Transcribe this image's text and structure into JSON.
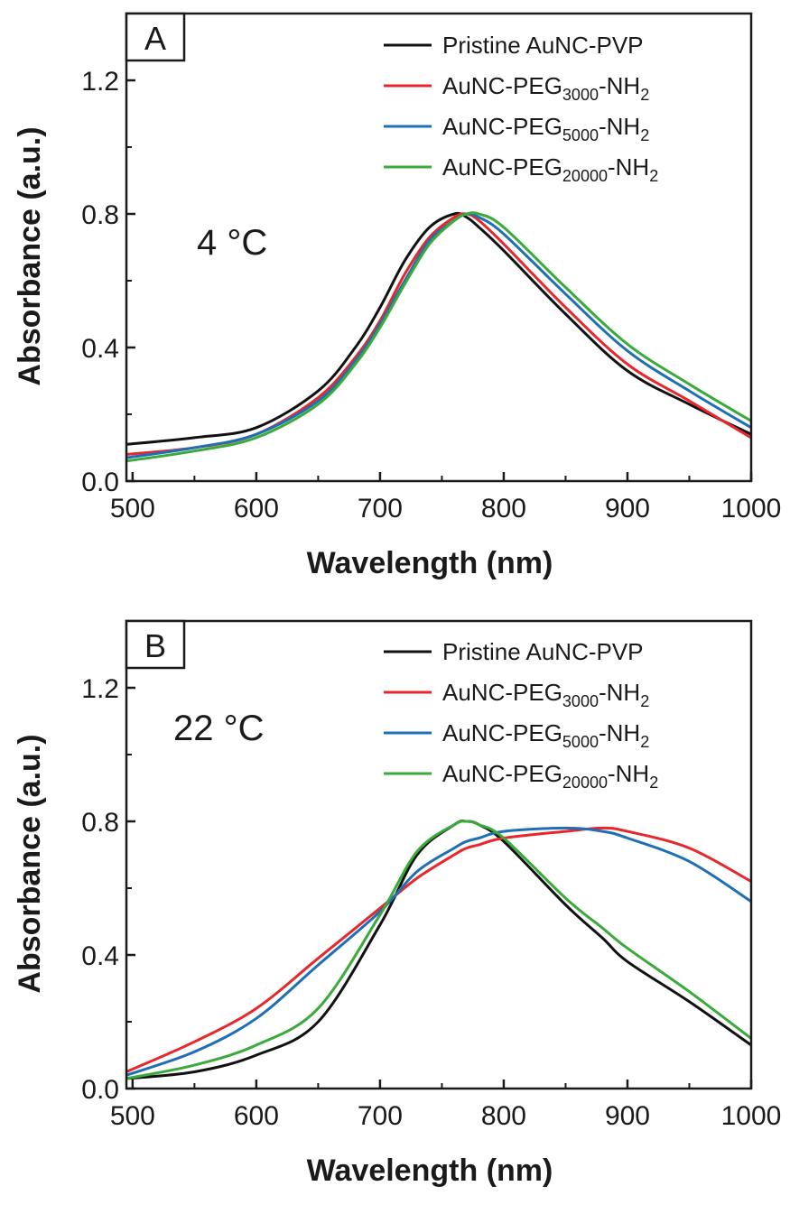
{
  "chart_data": [
    {
      "type": "line",
      "panel_label": "A",
      "annotation": "4 °C",
      "xlabel": "Wavelength (nm)",
      "ylabel": "Absorbance (a.u.)",
      "xlim": [
        495,
        1000
      ],
      "ylim": [
        0,
        1.4
      ],
      "xticks": [
        500,
        600,
        700,
        800,
        900,
        1000
      ],
      "yticks": [
        0.0,
        0.4,
        0.8,
        1.2
      ],
      "xtick_labels": [
        "500",
        "600",
        "700",
        "800",
        "900",
        "1000"
      ],
      "ytick_labels": [
        "0.0",
        "0.4",
        "0.8",
        "1.2"
      ],
      "legend_position": "top-right",
      "grid": false,
      "x": [
        495,
        550,
        600,
        650,
        680,
        700,
        720,
        740,
        760,
        770,
        780,
        800,
        850,
        900,
        950,
        1000
      ],
      "series": [
        {
          "name": "Pristine AuNC-PVP",
          "name_main": "Pristine AuNC-PVP",
          "name_sub": "",
          "name_tail": "",
          "color": "#111111",
          "values": [
            0.11,
            0.13,
            0.16,
            0.27,
            0.4,
            0.52,
            0.66,
            0.76,
            0.8,
            0.79,
            0.76,
            0.69,
            0.5,
            0.33,
            0.23,
            0.14
          ]
        },
        {
          "name": "AuNC-PEG3000-NH2",
          "name_main": "AuNC-PEG",
          "name_sub": "3000",
          "name_tail": "-NH",
          "name_sub2": "2",
          "color": "#e8262b",
          "values": [
            0.08,
            0.1,
            0.14,
            0.25,
            0.37,
            0.48,
            0.62,
            0.73,
            0.79,
            0.8,
            0.78,
            0.71,
            0.52,
            0.35,
            0.24,
            0.13
          ]
        },
        {
          "name": "AuNC-PEG5000-NH2",
          "name_main": "AuNC-PEG",
          "name_sub": "5000",
          "name_tail": "-NH",
          "name_sub2": "2",
          "color": "#1f6fb6",
          "values": [
            0.07,
            0.1,
            0.14,
            0.24,
            0.36,
            0.47,
            0.6,
            0.72,
            0.78,
            0.8,
            0.79,
            0.74,
            0.56,
            0.39,
            0.27,
            0.16
          ]
        },
        {
          "name": "AuNC-PEG20000-NH2",
          "name_main": "AuNC-PEG",
          "name_sub": "20000",
          "name_tail": "-NH",
          "name_sub2": "2",
          "color": "#3aaa3a",
          "values": [
            0.06,
            0.09,
            0.13,
            0.23,
            0.35,
            0.46,
            0.59,
            0.71,
            0.78,
            0.8,
            0.8,
            0.76,
            0.58,
            0.41,
            0.29,
            0.18
          ]
        }
      ]
    },
    {
      "type": "line",
      "panel_label": "B",
      "annotation": "22 °C",
      "xlabel": "Wavelength (nm)",
      "ylabel": "Absorbance (a.u.)",
      "xlim": [
        495,
        1000
      ],
      "ylim": [
        0,
        1.4
      ],
      "xticks": [
        500,
        600,
        700,
        800,
        900,
        1000
      ],
      "yticks": [
        0.0,
        0.4,
        0.8,
        1.2
      ],
      "xtick_labels": [
        "500",
        "600",
        "700",
        "800",
        "900",
        "1000"
      ],
      "ytick_labels": [
        "0.0",
        "0.4",
        "0.8",
        "1.2"
      ],
      "legend_position": "top-right",
      "grid": false,
      "x": [
        495,
        550,
        600,
        650,
        700,
        730,
        760,
        770,
        780,
        800,
        850,
        880,
        900,
        950,
        1000
      ],
      "series": [
        {
          "name": "Pristine AuNC-PVP",
          "name_main": "Pristine AuNC-PVP",
          "name_sub": "",
          "name_tail": "",
          "color": "#111111",
          "values": [
            0.03,
            0.05,
            0.1,
            0.2,
            0.49,
            0.7,
            0.79,
            0.8,
            0.79,
            0.74,
            0.55,
            0.45,
            0.38,
            0.26,
            0.13
          ]
        },
        {
          "name": "AuNC-PEG3000-NH2",
          "name_main": "AuNC-PEG",
          "name_sub": "3000",
          "name_tail": "-NH",
          "name_sub2": "2",
          "color": "#e8262b",
          "values": [
            0.05,
            0.14,
            0.24,
            0.39,
            0.54,
            0.63,
            0.7,
            0.72,
            0.73,
            0.75,
            0.77,
            0.78,
            0.77,
            0.72,
            0.62
          ]
        },
        {
          "name": "AuNC-PEG5000-NH2",
          "name_main": "AuNC-PEG",
          "name_sub": "5000",
          "name_tail": "-NH",
          "name_sub2": "2",
          "color": "#1f6fb6",
          "values": [
            0.04,
            0.11,
            0.21,
            0.37,
            0.53,
            0.65,
            0.72,
            0.74,
            0.75,
            0.77,
            0.78,
            0.77,
            0.75,
            0.68,
            0.56
          ]
        },
        {
          "name": "AuNC-PEG20000-NH2",
          "name_main": "AuNC-PEG",
          "name_sub": "20000",
          "name_tail": "-NH",
          "name_sub2": "2",
          "color": "#3aaa3a",
          "values": [
            0.03,
            0.07,
            0.13,
            0.24,
            0.52,
            0.71,
            0.79,
            0.8,
            0.79,
            0.75,
            0.57,
            0.48,
            0.42,
            0.29,
            0.15
          ]
        }
      ]
    }
  ]
}
